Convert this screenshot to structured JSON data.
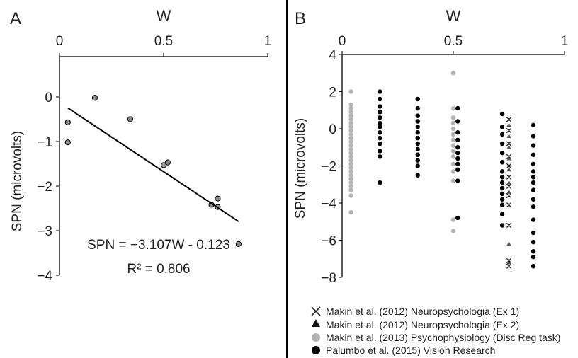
{
  "chart_data": [
    {
      "panel": "A",
      "type": "scatter",
      "xlabel": "W",
      "ylabel": "SPN (microvolts)",
      "xlim": [
        0,
        1
      ],
      "ylim": [
        -4,
        0.6
      ],
      "x_ticks": [
        "0",
        "0.5",
        "1"
      ],
      "y_ticks": [
        "0",
        "−1",
        "−2",
        "−3",
        "−4"
      ],
      "x_axis_position": "top",
      "points": [
        {
          "x": 0.04,
          "y": -0.57
        },
        {
          "x": 0.04,
          "y": -1.02
        },
        {
          "x": 0.17,
          "y": -0.02
        },
        {
          "x": 0.34,
          "y": -0.5
        },
        {
          "x": 0.5,
          "y": -1.53
        },
        {
          "x": 0.52,
          "y": -1.47
        },
        {
          "x": 0.73,
          "y": -2.42
        },
        {
          "x": 0.76,
          "y": -2.28
        },
        {
          "x": 0.76,
          "y": -2.47
        },
        {
          "x": 0.86,
          "y": -3.3
        }
      ],
      "fit_line": {
        "slope": -3.107,
        "intercept": -0.123,
        "x_range": [
          0.04,
          0.86
        ]
      },
      "annotations": [
        "SPN = −3.107W - 0.123",
        "R² = 0.806"
      ],
      "grid": false
    },
    {
      "panel": "B",
      "type": "scatter",
      "xlabel": "W",
      "ylabel": "SPN (microvolts)",
      "xlim": [
        0,
        1
      ],
      "ylim": [
        -8,
        4
      ],
      "x_ticks": [
        "0",
        "0.5",
        "1"
      ],
      "y_ticks": [
        "4",
        "2",
        "0",
        "−2",
        "−4",
        "−6",
        "−8"
      ],
      "x_axis_position": "top",
      "legend_position": "bottom",
      "series": [
        {
          "name": "Makin et al. (2012) Neuropsychologia (Ex 1)",
          "marker": "x",
          "color": "#222222",
          "points": [
            {
              "x": 0.75,
              "y": 0.5
            },
            {
              "x": 0.75,
              "y": -0.1
            },
            {
              "x": 0.75,
              "y": -0.8
            },
            {
              "x": 0.75,
              "y": -1.5
            },
            {
              "x": 0.75,
              "y": -2.0
            },
            {
              "x": 0.75,
              "y": -2.6
            },
            {
              "x": 0.75,
              "y": -3.1
            },
            {
              "x": 0.75,
              "y": -3.6
            },
            {
              "x": 0.75,
              "y": -4.1
            },
            {
              "x": 0.75,
              "y": -5.2
            },
            {
              "x": 0.75,
              "y": -7.1
            },
            {
              "x": 0.75,
              "y": -7.4
            }
          ]
        },
        {
          "name": "Makin et al. (2012) Neuropsychologia (Ex 2)",
          "marker": "triangle",
          "color": "#555555",
          "points": [
            {
              "x": 0.75,
              "y": 0.2
            },
            {
              "x": 0.75,
              "y": -0.4
            },
            {
              "x": 0.75,
              "y": -1.0
            },
            {
              "x": 0.75,
              "y": -1.6
            },
            {
              "x": 0.75,
              "y": -2.2
            },
            {
              "x": 0.75,
              "y": -2.9
            },
            {
              "x": 0.75,
              "y": -3.4
            },
            {
              "x": 0.75,
              "y": -6.2
            },
            {
              "x": 0.75,
              "y": -7.2
            }
          ]
        },
        {
          "name": "Makin et al. (2013) Psychophysiology  (Disc Reg task)",
          "marker": "circle",
          "color": "#b4b4b4",
          "points": [
            {
              "x": 0.04,
              "y": 2.0
            },
            {
              "x": 0.04,
              "y": 1.3
            },
            {
              "x": 0.04,
              "y": 1.1
            },
            {
              "x": 0.04,
              "y": 0.9
            },
            {
              "x": 0.04,
              "y": 0.7
            },
            {
              "x": 0.04,
              "y": 0.5
            },
            {
              "x": 0.04,
              "y": 0.3
            },
            {
              "x": 0.04,
              "y": 0.1
            },
            {
              "x": 0.04,
              "y": -0.1
            },
            {
              "x": 0.04,
              "y": -0.3
            },
            {
              "x": 0.04,
              "y": -0.5
            },
            {
              "x": 0.04,
              "y": -0.7
            },
            {
              "x": 0.04,
              "y": -0.9
            },
            {
              "x": 0.04,
              "y": -1.1
            },
            {
              "x": 0.04,
              "y": -1.3
            },
            {
              "x": 0.04,
              "y": -1.5
            },
            {
              "x": 0.04,
              "y": -1.7
            },
            {
              "x": 0.04,
              "y": -1.9
            },
            {
              "x": 0.04,
              "y": -2.1
            },
            {
              "x": 0.04,
              "y": -2.3
            },
            {
              "x": 0.04,
              "y": -2.5
            },
            {
              "x": 0.04,
              "y": -2.7
            },
            {
              "x": 0.04,
              "y": -2.9
            },
            {
              "x": 0.04,
              "y": -3.1
            },
            {
              "x": 0.04,
              "y": -3.3
            },
            {
              "x": 0.04,
              "y": -3.6
            },
            {
              "x": 0.04,
              "y": -4.5
            },
            {
              "x": 0.5,
              "y": 3.0
            },
            {
              "x": 0.5,
              "y": 1.1
            },
            {
              "x": 0.5,
              "y": 0.6
            },
            {
              "x": 0.5,
              "y": 0.3
            },
            {
              "x": 0.5,
              "y": 0.0
            },
            {
              "x": 0.5,
              "y": -0.3
            },
            {
              "x": 0.5,
              "y": -0.6
            },
            {
              "x": 0.5,
              "y": -0.9
            },
            {
              "x": 0.5,
              "y": -1.2
            },
            {
              "x": 0.5,
              "y": -1.5
            },
            {
              "x": 0.5,
              "y": -1.9
            },
            {
              "x": 0.5,
              "y": -2.3
            },
            {
              "x": 0.5,
              "y": -2.8
            },
            {
              "x": 0.5,
              "y": -4.9
            },
            {
              "x": 0.5,
              "y": -5.5
            }
          ]
        },
        {
          "name": "Palumbo et al. (2015) Vision Research",
          "marker": "circle",
          "color": "#000000",
          "points": [
            {
              "x": 0.17,
              "y": 2.0
            },
            {
              "x": 0.17,
              "y": 1.6
            },
            {
              "x": 0.17,
              "y": 1.2
            },
            {
              "x": 0.17,
              "y": 0.9
            },
            {
              "x": 0.17,
              "y": 0.6
            },
            {
              "x": 0.17,
              "y": 0.3
            },
            {
              "x": 0.17,
              "y": 0.1
            },
            {
              "x": 0.17,
              "y": -0.2
            },
            {
              "x": 0.17,
              "y": -0.5
            },
            {
              "x": 0.17,
              "y": -0.8
            },
            {
              "x": 0.17,
              "y": -1.2
            },
            {
              "x": 0.17,
              "y": -1.5
            },
            {
              "x": 0.17,
              "y": -2.9
            },
            {
              "x": 0.34,
              "y": 1.6
            },
            {
              "x": 0.34,
              "y": 1.1
            },
            {
              "x": 0.34,
              "y": 0.7
            },
            {
              "x": 0.34,
              "y": 0.4
            },
            {
              "x": 0.34,
              "y": 0.1
            },
            {
              "x": 0.34,
              "y": -0.2
            },
            {
              "x": 0.34,
              "y": -0.5
            },
            {
              "x": 0.34,
              "y": -0.8
            },
            {
              "x": 0.34,
              "y": -1.1
            },
            {
              "x": 0.34,
              "y": -1.4
            },
            {
              "x": 0.34,
              "y": -1.7
            },
            {
              "x": 0.34,
              "y": -2.0
            },
            {
              "x": 0.34,
              "y": -2.5
            },
            {
              "x": 0.52,
              "y": 1.1
            },
            {
              "x": 0.52,
              "y": 0.4
            },
            {
              "x": 0.52,
              "y": -0.2
            },
            {
              "x": 0.52,
              "y": -0.6
            },
            {
              "x": 0.52,
              "y": -1.0
            },
            {
              "x": 0.52,
              "y": -1.3
            },
            {
              "x": 0.52,
              "y": -1.6
            },
            {
              "x": 0.52,
              "y": -1.9
            },
            {
              "x": 0.52,
              "y": -2.2
            },
            {
              "x": 0.52,
              "y": -2.8
            },
            {
              "x": 0.52,
              "y": -4.8
            },
            {
              "x": 0.72,
              "y": 0.8
            },
            {
              "x": 0.72,
              "y": 0.1
            },
            {
              "x": 0.72,
              "y": -0.3
            },
            {
              "x": 0.72,
              "y": -0.8
            },
            {
              "x": 0.72,
              "y": -1.3
            },
            {
              "x": 0.72,
              "y": -1.8
            },
            {
              "x": 0.72,
              "y": -2.3
            },
            {
              "x": 0.72,
              "y": -2.6
            },
            {
              "x": 0.72,
              "y": -2.9
            },
            {
              "x": 0.72,
              "y": -3.2
            },
            {
              "x": 0.72,
              "y": -3.5
            },
            {
              "x": 0.72,
              "y": -3.8
            },
            {
              "x": 0.72,
              "y": -4.1
            },
            {
              "x": 0.72,
              "y": -4.6
            },
            {
              "x": 0.72,
              "y": -5.2
            },
            {
              "x": 0.86,
              "y": 0.2
            },
            {
              "x": 0.86,
              "y": -0.4
            },
            {
              "x": 0.86,
              "y": -0.9
            },
            {
              "x": 0.86,
              "y": -1.4
            },
            {
              "x": 0.86,
              "y": -1.9
            },
            {
              "x": 0.86,
              "y": -2.3
            },
            {
              "x": 0.86,
              "y": -2.6
            },
            {
              "x": 0.86,
              "y": -2.9
            },
            {
              "x": 0.86,
              "y": -3.3
            },
            {
              "x": 0.86,
              "y": -3.8
            },
            {
              "x": 0.86,
              "y": -4.2
            },
            {
              "x": 0.86,
              "y": -4.9
            },
            {
              "x": 0.86,
              "y": -5.6
            },
            {
              "x": 0.86,
              "y": -6.1
            },
            {
              "x": 0.86,
              "y": -6.6
            },
            {
              "x": 0.86,
              "y": -6.9
            },
            {
              "x": 0.86,
              "y": -7.4
            }
          ]
        }
      ],
      "grid": false
    }
  ]
}
